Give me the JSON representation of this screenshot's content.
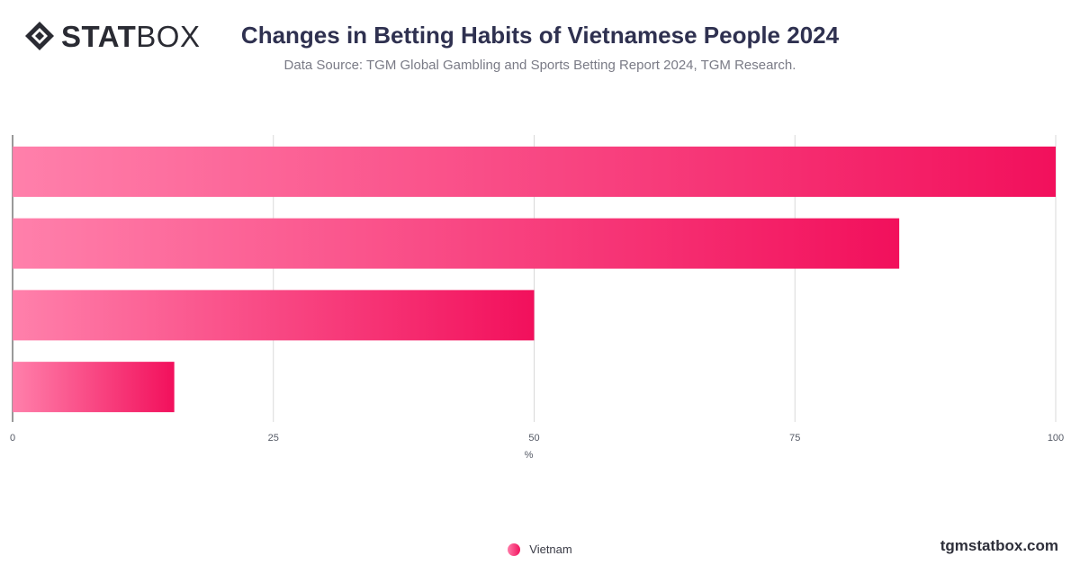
{
  "brand": {
    "logo_bold": "STAT",
    "logo_light": "BOX"
  },
  "header": {
    "title": "Changes in Betting Habits of Vietnamese People 2024",
    "subtitle": "Data Source: TGM Global Gambling and Sports Betting Report 2024, TGM Research."
  },
  "footer": {
    "site": "tgmstatbox.com"
  },
  "colors": {
    "bar_start": "#ff80ab",
    "bar_end": "#f2105c",
    "grid": "#d9d9d9",
    "axis": "#333333"
  },
  "chart_data": {
    "type": "bar",
    "orientation": "horizontal",
    "categories": [
      "",
      "",
      "",
      ""
    ],
    "series": [
      {
        "name": "Vietnam",
        "values": [
          100,
          85,
          50,
          15.5
        ]
      }
    ],
    "xlabel": "%",
    "xlim": [
      0,
      100
    ],
    "xticks": [
      0,
      25,
      50,
      75,
      100
    ],
    "grid": true,
    "legend": "bottom-center"
  }
}
